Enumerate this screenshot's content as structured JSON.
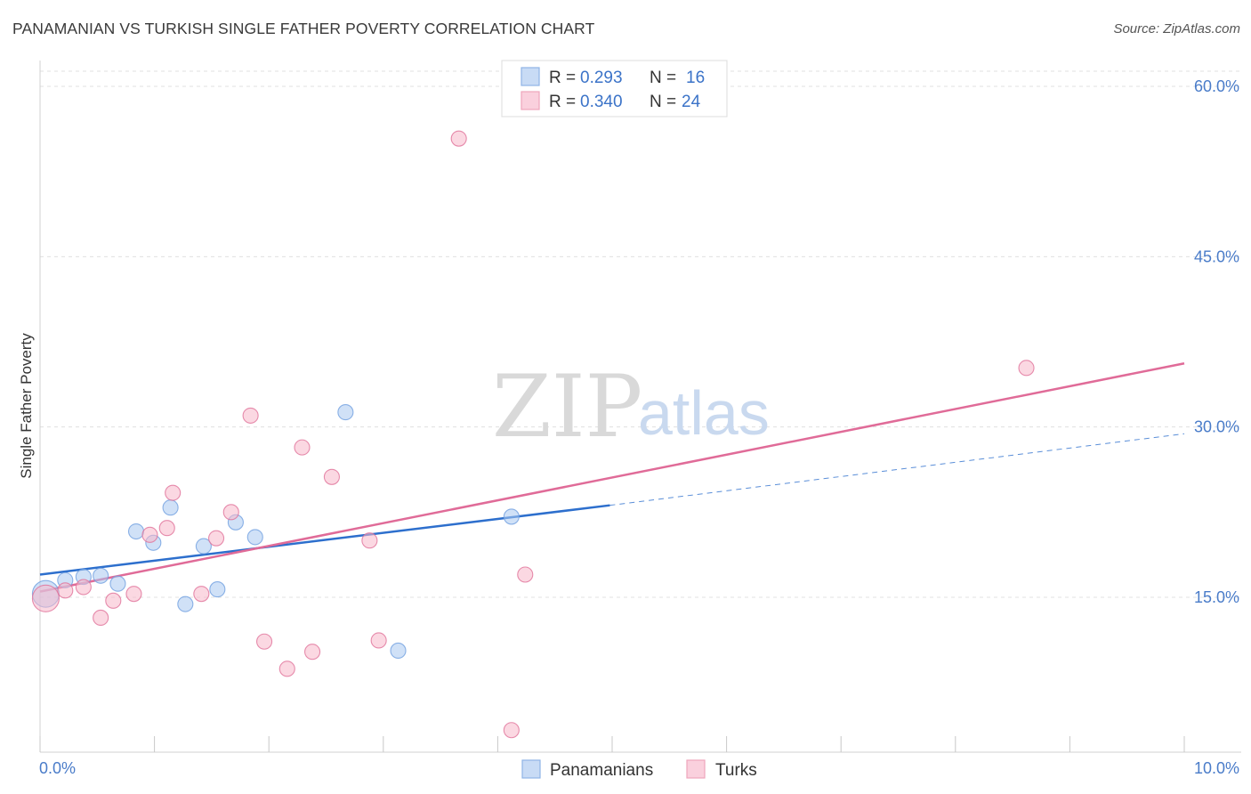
{
  "header": {
    "title": "PANAMANIAN VS TURKISH SINGLE FATHER POVERTY CORRELATION CHART",
    "source": "Source: ZipAtlas.com"
  },
  "watermark": {
    "zip": "ZIP",
    "atlas": "atlas"
  },
  "legend": {
    "rows": [
      {
        "r_label": "R = ",
        "r_value": "0.293",
        "n_label": "N = ",
        "n_value": "16",
        "color": "#a9c8f0"
      },
      {
        "r_label": "R = ",
        "r_value": "0.340",
        "n_label": "N = ",
        "n_value": "24",
        "color": "#f7b8cb"
      }
    ]
  },
  "bottom_legend": [
    {
      "label": "Panamanians",
      "color": "#a9c8f0"
    },
    {
      "label": "Turks",
      "color": "#f7b8cb"
    }
  ],
  "chart_data": {
    "type": "scatter",
    "title": "PANAMANIAN VS TURKISH SINGLE FATHER POVERTY CORRELATION CHART",
    "xlabel": "",
    "ylabel": "Single Father Poverty",
    "xlim": [
      0,
      10
    ],
    "ylim": [
      0,
      62
    ],
    "x_tick_labels": [
      "0.0%",
      "10.0%"
    ],
    "y_ticks": [
      15,
      30,
      45,
      60
    ],
    "y_tick_labels": [
      "15.0%",
      "30.0%",
      "45.0%",
      "60.0%"
    ],
    "grid": true,
    "legend_position": "top-center",
    "series": [
      {
        "name": "Panamanians",
        "color": "#6f9fe0",
        "fill": "#a9c8f0",
        "points": [
          [
            0.05,
            15.3
          ],
          [
            0.22,
            16.5
          ],
          [
            0.38,
            16.8
          ],
          [
            0.53,
            16.9
          ],
          [
            0.68,
            16.2
          ],
          [
            0.84,
            20.8
          ],
          [
            0.99,
            19.8
          ],
          [
            1.14,
            22.9
          ],
          [
            1.27,
            14.4
          ],
          [
            1.43,
            19.5
          ],
          [
            1.55,
            15.7
          ],
          [
            1.71,
            21.6
          ],
          [
            1.88,
            20.3
          ],
          [
            2.67,
            31.3
          ],
          [
            3.13,
            10.3
          ],
          [
            4.12,
            22.1
          ]
        ],
        "trend": {
          "x0": 0,
          "y0": 17.0,
          "x1": 4.98,
          "y1": 23.1,
          "dash_x1": 10,
          "dash_y1": 29.4
        }
      },
      {
        "name": "Turks",
        "color": "#e07098",
        "fill": "#f7b8cb",
        "points": [
          [
            0.05,
            14.9
          ],
          [
            0.22,
            15.6
          ],
          [
            0.38,
            15.9
          ],
          [
            0.53,
            13.2
          ],
          [
            0.64,
            14.7
          ],
          [
            0.82,
            15.3
          ],
          [
            0.96,
            20.5
          ],
          [
            1.11,
            21.1
          ],
          [
            1.16,
            24.2
          ],
          [
            1.41,
            15.3
          ],
          [
            1.54,
            20.2
          ],
          [
            1.67,
            22.5
          ],
          [
            1.84,
            31.0
          ],
          [
            1.96,
            11.1
          ],
          [
            2.16,
            8.7
          ],
          [
            2.29,
            28.2
          ],
          [
            2.38,
            10.2
          ],
          [
            2.55,
            25.6
          ],
          [
            2.88,
            20.0
          ],
          [
            2.96,
            11.2
          ],
          [
            3.66,
            55.4
          ],
          [
            4.12,
            3.3
          ],
          [
            4.24,
            17.0
          ],
          [
            8.62,
            35.2
          ]
        ],
        "trend": {
          "x0": 0,
          "y0": 15.5,
          "x1": 10,
          "y1": 35.6
        }
      }
    ]
  }
}
